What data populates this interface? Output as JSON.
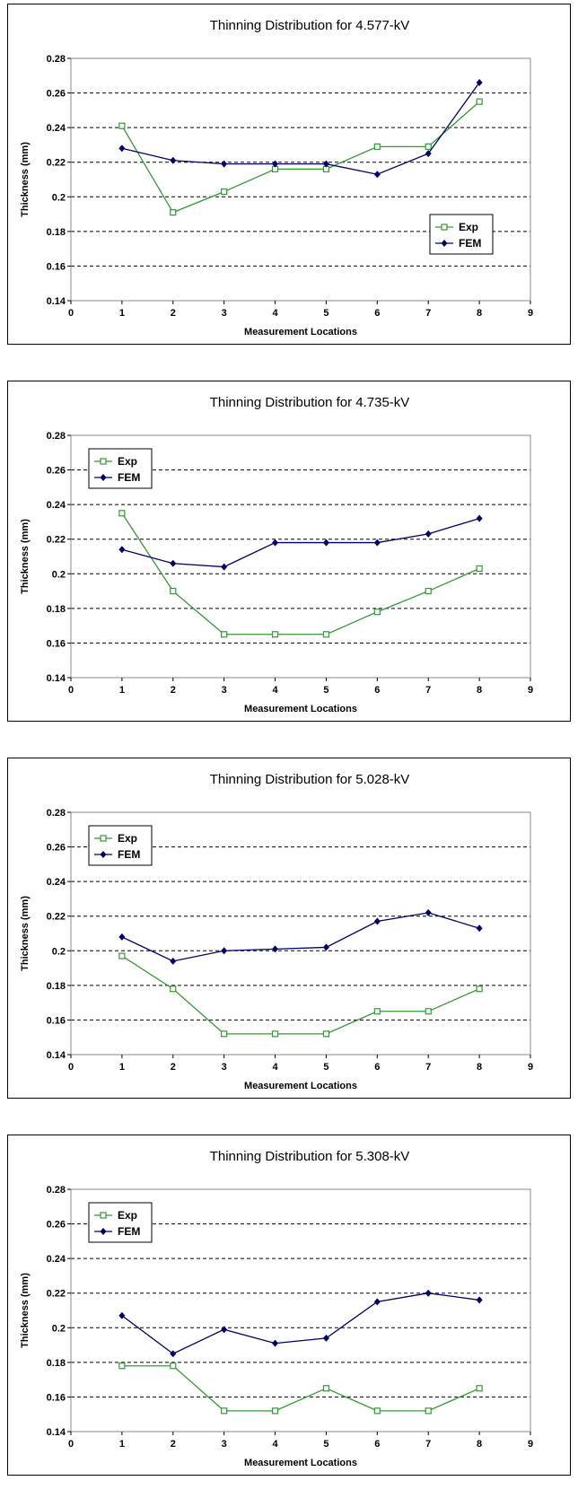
{
  "chart_data": [
    {
      "type": "line",
      "title": "Thinning Distribution for 4.577-kV",
      "xlabel": "Measurement Locations",
      "ylabel": "Thickness (mm)",
      "xlim": [
        0,
        9
      ],
      "ylim": [
        0.14,
        0.28
      ],
      "x_ticks": [
        "0",
        "1",
        "2",
        "3",
        "4",
        "5",
        "6",
        "7",
        "8",
        "9"
      ],
      "y_ticks": [
        "0.14",
        "0.16",
        "0.18",
        "0.2",
        "0.22",
        "0.24",
        "0.26",
        "0.28"
      ],
      "grid": "horizontal dashed",
      "legend_position": "right",
      "x": [
        1,
        2,
        3,
        4,
        5,
        6,
        7,
        8
      ],
      "series": [
        {
          "name": "Exp",
          "color": "#339933",
          "marker": "open-square",
          "values": [
            0.241,
            0.191,
            0.203,
            0.216,
            0.216,
            0.229,
            0.229,
            0.255
          ]
        },
        {
          "name": "FEM",
          "color": "#000066",
          "marker": "diamond",
          "values": [
            0.228,
            0.221,
            0.219,
            0.219,
            0.219,
            0.213,
            0.225,
            0.266
          ]
        }
      ]
    },
    {
      "type": "line",
      "title": "Thinning Distribution for 4.735-kV",
      "xlabel": "Measurement Locations",
      "ylabel": "Thickness (mm)",
      "xlim": [
        0,
        9
      ],
      "ylim": [
        0.14,
        0.28
      ],
      "x_ticks": [
        "0",
        "1",
        "2",
        "3",
        "4",
        "5",
        "6",
        "7",
        "8",
        "9"
      ],
      "y_ticks": [
        "0.14",
        "0.16",
        "0.18",
        "0.2",
        "0.22",
        "0.24",
        "0.26",
        "0.28"
      ],
      "grid": "horizontal dashed",
      "legend_position": "top-left",
      "x": [
        1,
        2,
        3,
        4,
        5,
        6,
        7,
        8
      ],
      "series": [
        {
          "name": "Exp",
          "color": "#339933",
          "marker": "open-square",
          "values": [
            0.235,
            0.19,
            0.165,
            0.165,
            0.165,
            0.178,
            0.19,
            0.203
          ]
        },
        {
          "name": "FEM",
          "color": "#000066",
          "marker": "diamond",
          "values": [
            0.214,
            0.206,
            0.204,
            0.218,
            0.218,
            0.218,
            0.223,
            0.232
          ]
        }
      ]
    },
    {
      "type": "line",
      "title": "Thinning Distribution for 5.028-kV",
      "xlabel": "Measurement Locations",
      "ylabel": "Thickness (mm)",
      "xlim": [
        0,
        9
      ],
      "ylim": [
        0.14,
        0.28
      ],
      "x_ticks": [
        "0",
        "1",
        "2",
        "3",
        "4",
        "5",
        "6",
        "7",
        "8",
        "9"
      ],
      "y_ticks": [
        "0.14",
        "0.16",
        "0.18",
        "0.2",
        "0.22",
        "0.24",
        "0.26",
        "0.28"
      ],
      "grid": "horizontal dashed",
      "legend_position": "top-left",
      "x": [
        1,
        2,
        3,
        4,
        5,
        6,
        7,
        8
      ],
      "series": [
        {
          "name": "Exp",
          "color": "#339933",
          "marker": "open-square",
          "values": [
            0.197,
            0.178,
            0.152,
            0.152,
            0.152,
            0.165,
            0.165,
            0.178
          ]
        },
        {
          "name": "FEM",
          "color": "#000066",
          "marker": "diamond",
          "values": [
            0.208,
            0.194,
            0.2,
            0.201,
            0.202,
            0.217,
            0.222,
            0.213
          ]
        }
      ]
    },
    {
      "type": "line",
      "title": "Thinning Distribution for 5.308-kV",
      "xlabel": "Measurement Locations",
      "ylabel": "Thickness (mm)",
      "xlim": [
        0,
        9
      ],
      "ylim": [
        0.14,
        0.28
      ],
      "x_ticks": [
        "0",
        "1",
        "2",
        "3",
        "4",
        "5",
        "6",
        "7",
        "8",
        "9"
      ],
      "y_ticks": [
        "0.14",
        "0.16",
        "0.18",
        "0.2",
        "0.22",
        "0.24",
        "0.26",
        "0.28"
      ],
      "grid": "horizontal dashed",
      "legend_position": "top-left",
      "x": [
        1,
        2,
        3,
        4,
        5,
        6,
        7,
        8
      ],
      "series": [
        {
          "name": "Exp",
          "color": "#339933",
          "marker": "open-square",
          "values": [
            0.178,
            0.178,
            0.152,
            0.152,
            0.165,
            0.152,
            0.152,
            0.165
          ]
        },
        {
          "name": "FEM",
          "color": "#000066",
          "marker": "diamond",
          "values": [
            0.207,
            0.185,
            0.199,
            0.191,
            0.194,
            0.215,
            0.22,
            0.216
          ]
        }
      ]
    }
  ]
}
